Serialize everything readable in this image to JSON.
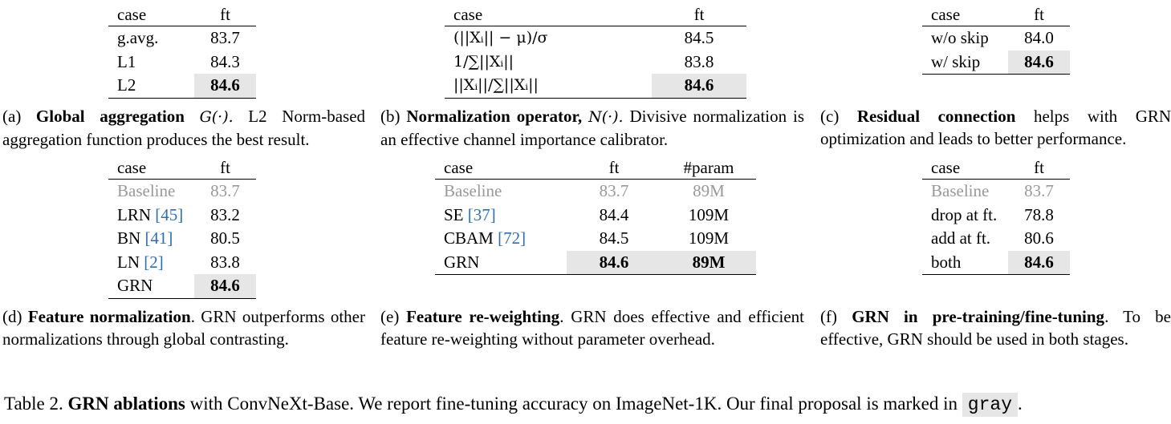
{
  "panel_a": {
    "header": {
      "case": "case",
      "ft": "ft"
    },
    "rows": [
      {
        "case": "g.avg.",
        "ft": "83.7"
      },
      {
        "case": "L1",
        "ft": "84.3"
      },
      {
        "case": "L2",
        "ft": "84.6"
      }
    ],
    "caption": {
      "label": "(a)",
      "bold": "Global aggregation",
      "math": "G(·).",
      "rest": "L2 Norm-based aggregation function produces the best result."
    }
  },
  "panel_b": {
    "header": {
      "case": "case",
      "ft": "ft"
    },
    "rows": [
      {
        "case": "(||Xᵢ|| − μ)/σ",
        "ft": "84.5"
      },
      {
        "case": "1/∑||Xᵢ||",
        "ft": "83.8"
      },
      {
        "case": "||Xᵢ||/∑||Xᵢ||",
        "ft": "84.6"
      }
    ],
    "caption": {
      "label": "(b)",
      "bold": "Normalization operator,",
      "math": "N(·).",
      "rest": "Divisive normalization is an effective channel importance calibrator."
    }
  },
  "panel_c": {
    "header": {
      "case": "case",
      "ft": "ft"
    },
    "rows": [
      {
        "case": "w/o skip",
        "ft": "84.0"
      },
      {
        "case": "w/ skip",
        "ft": "84.6"
      }
    ],
    "caption": {
      "label": "(c)",
      "bold": "Residual connection",
      "rest": "helps with GRN optimization and leads to better performance."
    }
  },
  "panel_d": {
    "header": {
      "case": "case",
      "ft": "ft"
    },
    "rows": [
      {
        "case": "Baseline",
        "ft": "83.7"
      },
      {
        "case": "LRN",
        "cite": "[45]",
        "ft": "83.2"
      },
      {
        "case": "BN",
        "cite": "[41]",
        "ft": "80.5"
      },
      {
        "case": "LN",
        "cite": "[2]",
        "ft": "83.8"
      },
      {
        "case": "GRN",
        "ft": "84.6"
      }
    ],
    "caption": {
      "label": "(d)",
      "bold": "Feature normalization",
      "rest": ". GRN outperforms other normalizations through global contrasting."
    }
  },
  "panel_e": {
    "header": {
      "case": "case",
      "ft": "ft",
      "param": "#param"
    },
    "rows": [
      {
        "case": "Baseline",
        "ft": "83.7",
        "param": "89M"
      },
      {
        "case": "SE",
        "cite": "[37]",
        "ft": "84.4",
        "param": "109M"
      },
      {
        "case": "CBAM",
        "cite": "[72]",
        "ft": "84.5",
        "param": "109M"
      },
      {
        "case": "GRN",
        "ft": "84.6",
        "param": "89M"
      }
    ],
    "caption": {
      "label": "(e)",
      "bold": "Feature re-weighting",
      "rest": ". GRN does effective and efficient feature re-weighting without parameter overhead."
    }
  },
  "panel_f": {
    "header": {
      "case": "case",
      "ft": "ft"
    },
    "rows": [
      {
        "case": "Baseline",
        "ft": "83.7"
      },
      {
        "case": "drop at ft.",
        "ft": "78.8"
      },
      {
        "case": "add at ft.",
        "ft": "80.6"
      },
      {
        "case": "both",
        "ft": "84.6"
      }
    ],
    "caption": {
      "label": "(f)",
      "bold": "GRN in pre-training/fine-tuning",
      "rest": ". To be effective, GRN should be used in both stages."
    }
  },
  "footer": {
    "prefix": "Table 2.",
    "bold": "GRN ablations",
    "rest": "with ConvNeXt-Base. We report fine-tuning accuracy on ImageNet-1K. Our final proposal is marked in",
    "gray_word": "gray",
    "end": "."
  },
  "colors": {
    "highlight": "#e6e6e6",
    "baseline_text": "#999999",
    "citation": "#2d6fb3"
  }
}
